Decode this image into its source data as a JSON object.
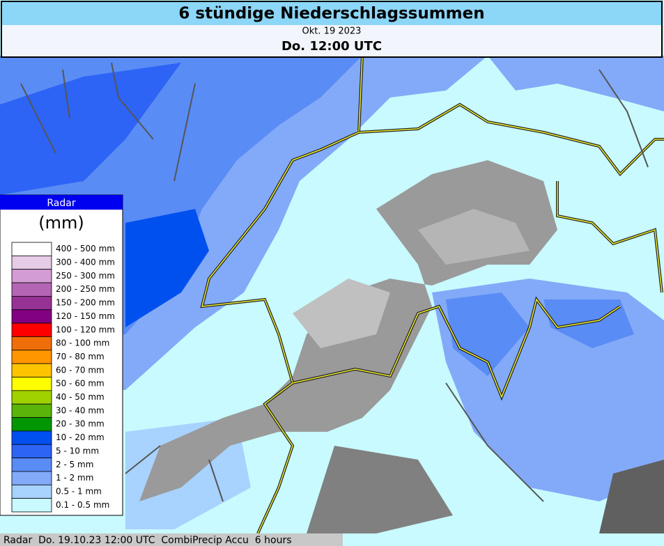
{
  "header": {
    "title": "6 stündige Niederschlagssummen",
    "date": "Okt. 19 2023",
    "time": "Do. 12:00 UTC"
  },
  "legend": {
    "title": "Radar",
    "unit": "(mm)",
    "items": [
      {
        "label": "400 - 500 mm",
        "color": "#ffffff"
      },
      {
        "label": "300 - 400 mm",
        "color": "#e6cce6"
      },
      {
        "label": "250 - 300 mm",
        "color": "#d49cd4"
      },
      {
        "label": "200 - 250 mm",
        "color": "#b466b4"
      },
      {
        "label": "150 - 200 mm",
        "color": "#963296"
      },
      {
        "label": "120 - 150 mm",
        "color": "#820082"
      },
      {
        "label": "100 - 120 mm",
        "color": "#ff0000"
      },
      {
        "label": "80 - 100 mm",
        "color": "#f06e0a"
      },
      {
        "label": "70 - 80 mm",
        "color": "#ff9600"
      },
      {
        "label": "60 - 70 mm",
        "color": "#ffc400"
      },
      {
        "label": "50 - 60 mm",
        "color": "#ffff00"
      },
      {
        "label": "40 - 50 mm",
        "color": "#a0d200"
      },
      {
        "label": "30 - 40 mm",
        "color": "#5ab40a"
      },
      {
        "label": "20 - 30 mm",
        "color": "#009600"
      },
      {
        "label": "10 - 20 mm",
        "color": "#0050f0"
      },
      {
        "label": "5 - 10 mm",
        "color": "#2d64f5"
      },
      {
        "label": "2 - 5 mm",
        "color": "#5a8cf5"
      },
      {
        "label": "1 - 2 mm",
        "color": "#82aaf8"
      },
      {
        "label": "0.5 - 1 mm",
        "color": "#a8d2ff"
      },
      {
        "label": "0.1 - 0.5 mm",
        "color": "#c8faff"
      }
    ]
  },
  "footer": {
    "text": "Radar  Do. 19.10.23 12:00 UTC  CombiPrecip Accu  6 hours"
  }
}
